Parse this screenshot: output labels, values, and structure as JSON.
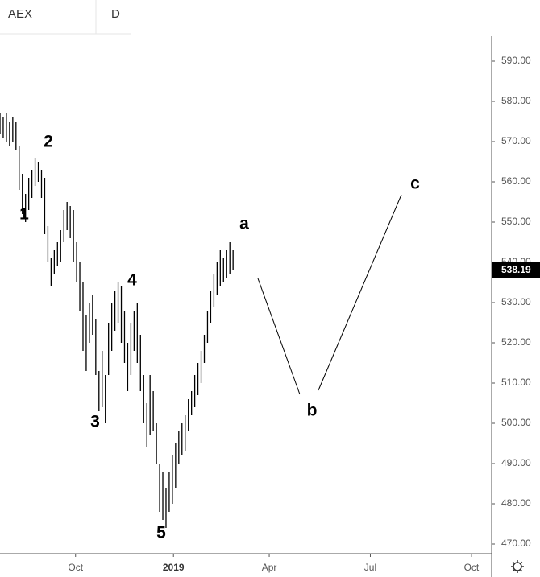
{
  "chart_data": {
    "type": "ohlc",
    "symbol": "AEX",
    "interval": "D",
    "color": "#000000",
    "x": [
      -71,
      -68,
      -65,
      -62,
      -59,
      -56,
      -53,
      -50,
      -47,
      -44,
      -41,
      -38,
      -35,
      -32,
      -29,
      -26,
      -23,
      -20,
      -17,
      -14,
      -11,
      -8,
      -5,
      -2,
      1,
      4,
      7,
      10,
      13,
      16,
      19,
      22,
      25,
      28,
      31,
      34,
      37,
      40,
      43,
      46,
      49,
      52,
      55,
      58,
      61,
      64,
      67,
      70,
      73,
      76,
      79,
      82,
      85,
      88,
      91,
      94,
      97,
      100,
      103,
      106,
      109,
      112,
      115,
      118,
      121,
      124,
      127,
      130,
      133,
      136,
      139,
      142,
      145,
      148
    ],
    "high": [
      577,
      576,
      577,
      575,
      576,
      575,
      569,
      562,
      557,
      561,
      563,
      566,
      565,
      563,
      561,
      549,
      541,
      543,
      545,
      548,
      553,
      555,
      554,
      553,
      545,
      540,
      535,
      527,
      530,
      532,
      526,
      513,
      518,
      512,
      525,
      530,
      533,
      535,
      534,
      528,
      520,
      525,
      528,
      530,
      522,
      512,
      505,
      512,
      508,
      500,
      490,
      488,
      484,
      488,
      492,
      495,
      498,
      500,
      502,
      506,
      508,
      512,
      515,
      518,
      522,
      528,
      533,
      537,
      540,
      543,
      541,
      543,
      545,
      543
    ],
    "low": [
      572,
      571,
      570,
      569,
      570,
      568,
      558,
      552,
      550,
      553,
      556,
      559,
      560,
      556,
      547,
      540,
      534,
      537,
      539,
      540,
      545,
      548,
      546,
      540,
      535,
      528,
      518,
      513,
      520,
      522,
      512,
      503,
      504,
      500,
      512,
      518,
      523,
      525,
      520,
      515,
      508,
      512,
      518,
      515,
      508,
      500,
      494,
      497,
      498,
      490,
      478,
      476,
      474,
      478,
      480,
      484,
      490,
      492,
      493,
      498,
      502,
      504,
      507,
      510,
      515,
      520,
      525,
      529,
      532,
      534,
      535,
      536,
      537,
      538
    ],
    "last_price": {
      "value": 538.19,
      "label": "538.19"
    },
    "annotations": [
      "1",
      "2",
      "3",
      "4",
      "5",
      "a",
      "b",
      "c"
    ],
    "xlim": [
      -71,
      391
    ],
    "xticks": [
      {
        "value": 0,
        "label": "Oct"
      },
      {
        "value": 92,
        "label": "2019"
      },
      {
        "value": 182,
        "label": "Apr"
      },
      {
        "value": 277,
        "label": "Jul"
      },
      {
        "value": 372,
        "label": "Oct"
      }
    ],
    "ylim": [
      467.6,
      596.2
    ],
    "yticks": [
      {
        "value": 470,
        "label": "470.00"
      },
      {
        "value": 480,
        "label": "480.00"
      },
      {
        "value": 490,
        "label": "490.00"
      },
      {
        "value": 500,
        "label": "500.00"
      },
      {
        "value": 510,
        "label": "510.00"
      },
      {
        "value": 520,
        "label": "520.00"
      },
      {
        "value": 530,
        "label": "530.00"
      },
      {
        "value": 540,
        "label": "540.00"
      },
      {
        "value": 550,
        "label": "550.00"
      },
      {
        "value": 560,
        "label": "560.00"
      },
      {
        "value": 570,
        "label": "570.00"
      },
      {
        "value": 580,
        "label": "580.00"
      },
      {
        "value": 590,
        "label": "590.00"
      }
    ]
  }
}
